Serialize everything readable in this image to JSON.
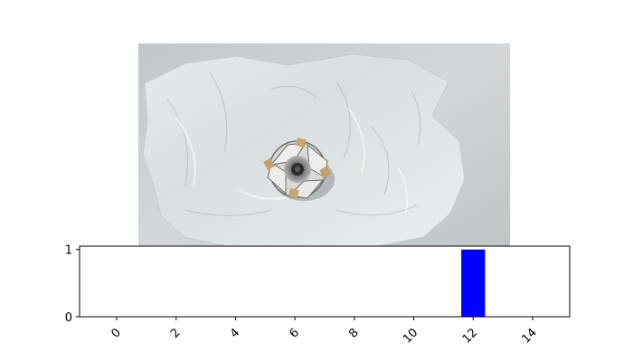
{
  "photo": {
    "subject": "milling-cutter-head-on-plastic-bag",
    "colors": {
      "background": "#c9cdd0",
      "plastic": "#dfe4e6",
      "cutter_body": "#8f8f8d",
      "inserts": "#c9a66b"
    }
  },
  "chart_data": {
    "type": "bar",
    "x": [
      12
    ],
    "values": [
      1
    ],
    "xlim": [
      -1.25,
      15.25
    ],
    "ylim": [
      0,
      1.05
    ],
    "xticks": [
      "0",
      "2",
      "4",
      "6",
      "8",
      "10",
      "12",
      "14"
    ],
    "xtick_values": [
      0,
      2,
      4,
      6,
      8,
      10,
      12,
      14
    ],
    "yticks": [
      "0",
      "1"
    ],
    "ytick_values": [
      0,
      1
    ],
    "xtick_rotation": 45,
    "bar_color": "#0000ff",
    "bar_width": 0.8,
    "grid": false,
    "title": "",
    "xlabel": "",
    "ylabel": ""
  }
}
